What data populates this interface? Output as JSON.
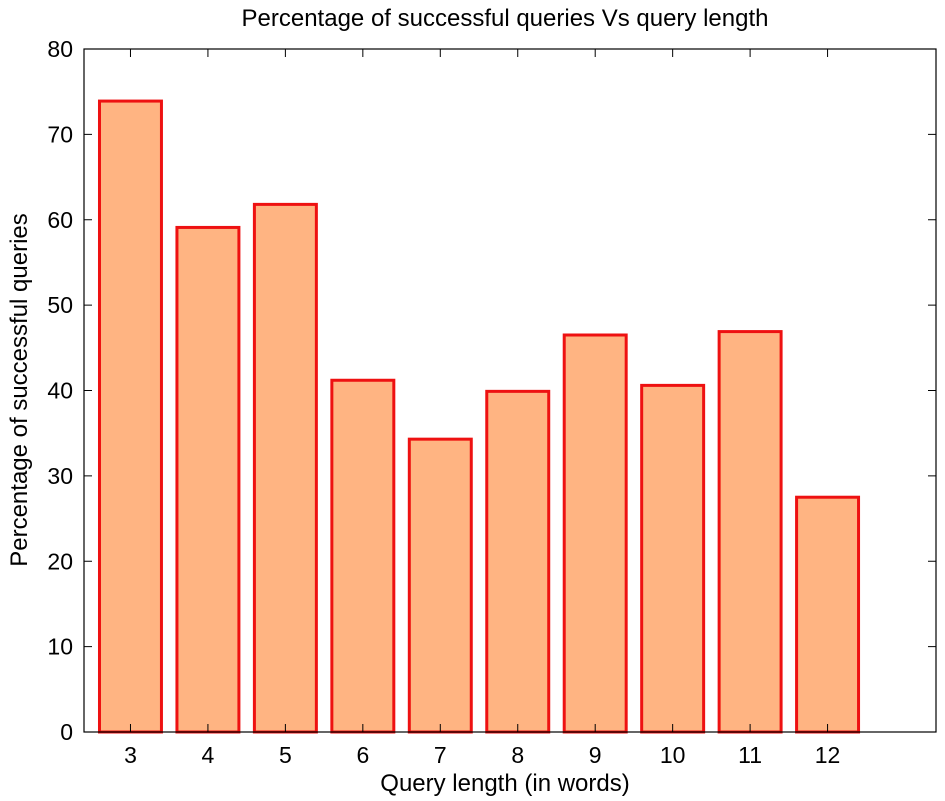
{
  "chart_data": {
    "type": "bar",
    "title": "Percentage of successful queries Vs query length",
    "xlabel": "Query length (in words)",
    "ylabel": "Percentage of successful queries",
    "categories": [
      "3",
      "4",
      "5",
      "6",
      "7",
      "8",
      "9",
      "10",
      "11",
      "12"
    ],
    "values": [
      73.9,
      59.1,
      61.8,
      41.2,
      34.3,
      39.9,
      46.5,
      40.6,
      46.9,
      27.5
    ],
    "xlim": [
      2.4,
      13.4
    ],
    "ylim": [
      0,
      80
    ],
    "yticks": [
      "0",
      "10",
      "20",
      "30",
      "40",
      "50",
      "60",
      "70",
      "80"
    ],
    "grid": false,
    "bar_fill": "#ffb482",
    "bar_edge": "#ee1111"
  }
}
